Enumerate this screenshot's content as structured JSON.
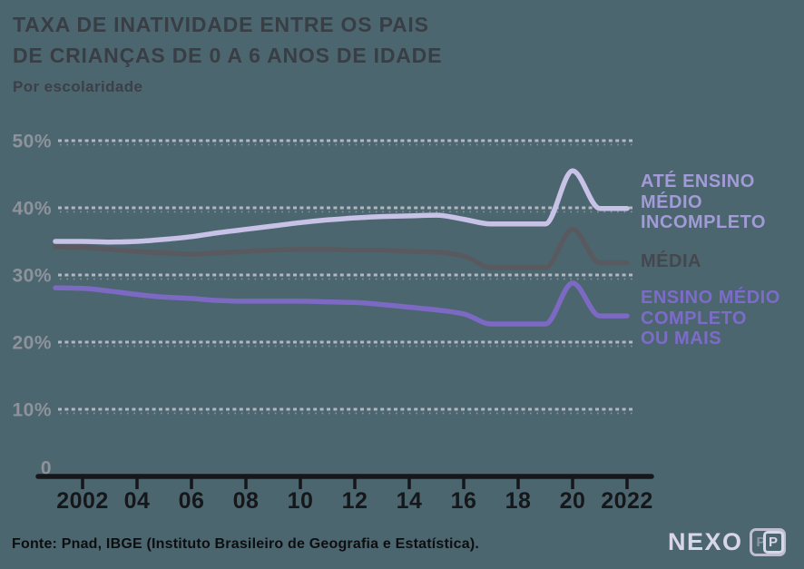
{
  "header": {
    "title_line1": "TAXA DE INATIVIDADE ENTRE OS PAIS",
    "title_line2": "DE CRIANÇAS DE 0 A 6 ANOS DE IDADE",
    "subtitle": "Por escolaridade"
  },
  "footer": {
    "source": "Fonte: Pnad, IBGE (Instituto Brasileiro de Geografia e Estatística).",
    "logo_text": "NEXO",
    "logo_badge_p1": "P",
    "logo_badge_p2": "P"
  },
  "colors": {
    "background": "#4c6670",
    "title": "#393d44",
    "gridline": "#b9bcc6",
    "axis": "#15171a",
    "x_tick_label": "#15171a",
    "y_tick_label": "#8d929b",
    "logo": "#d9d6e9"
  },
  "chart_data": {
    "type": "line",
    "title": "Taxa de inatividade entre os pais de crianças de 0 a 6 anos de idade",
    "subtitle": "Por escolaridade",
    "xlabel": "",
    "ylabel": "",
    "unit": "%",
    "ylim": [
      0,
      50
    ],
    "grid": "dotted-horizontal",
    "legend_position": "right",
    "x": [
      2001,
      2002,
      2003,
      2004,
      2005,
      2006,
      2007,
      2008,
      2009,
      2010,
      2011,
      2012,
      2013,
      2014,
      2015,
      2016,
      2017,
      2018,
      2019,
      2020,
      2021,
      2022
    ],
    "x_tick_labels": [
      "2002",
      "04",
      "06",
      "08",
      "10",
      "12",
      "14",
      "16",
      "18",
      "20",
      "2022"
    ],
    "x_tick_years": [
      2002,
      2004,
      2006,
      2008,
      2010,
      2012,
      2014,
      2016,
      2018,
      2020,
      2022
    ],
    "y_ticks": [
      {
        "label": "50%",
        "value": 50
      },
      {
        "label": "40%",
        "value": 40
      },
      {
        "label": "30%",
        "value": 30
      },
      {
        "label": "20%",
        "value": 20
      },
      {
        "label": "10%",
        "value": 10
      },
      {
        "label": "0",
        "value": 0
      }
    ],
    "series": [
      {
        "name": "ATÉ ENSINO MÉDIO INCOMPLETO",
        "legend_label": "ATÉ ENSINO\nMÉDIO\nINCOMPLETO",
        "color": "#c8c2e7",
        "label_color": "#a39ad8",
        "values": [
          35.0,
          35.0,
          34.9,
          35.0,
          35.3,
          35.7,
          36.3,
          36.8,
          37.3,
          37.8,
          38.2,
          38.5,
          38.7,
          38.8,
          38.9,
          38.3,
          37.6,
          37.6,
          37.6,
          45.5,
          39.9,
          39.9
        ]
      },
      {
        "name": "MÉDIA",
        "legend_label": "MÉDIA",
        "color": "#595a5f",
        "label_color": "#45474d",
        "values": [
          34.2,
          34.1,
          33.8,
          33.5,
          33.3,
          33.1,
          33.3,
          33.5,
          33.7,
          33.8,
          33.8,
          33.7,
          33.7,
          33.5,
          33.4,
          32.8,
          31.1,
          31.1,
          31.1,
          36.8,
          31.8,
          31.8
        ]
      },
      {
        "name": "ENSINO MÉDIO COMPLETO OU MAIS",
        "legend_label": "ENSINO MÉDIO\nCOMPLETO\nOU MAIS",
        "color": "#7c69c3",
        "label_color": "#7d6bca",
        "values": [
          28.1,
          28.0,
          27.6,
          27.1,
          26.7,
          26.5,
          26.2,
          26.1,
          26.1,
          26.1,
          26.0,
          25.9,
          25.6,
          25.2,
          24.8,
          24.2,
          22.7,
          22.7,
          22.7,
          28.8,
          23.9,
          23.9
        ]
      }
    ]
  }
}
